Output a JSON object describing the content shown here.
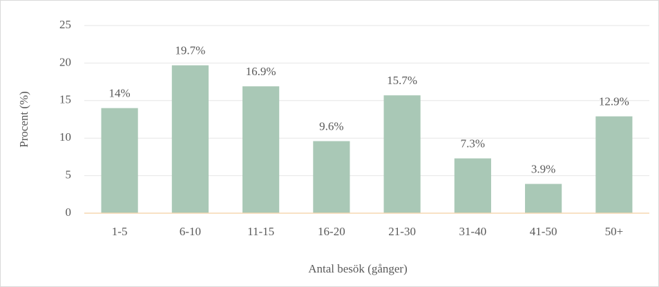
{
  "chart_data": {
    "type": "bar",
    "categories": [
      "1-5",
      "6-10",
      "11-15",
      "16-20",
      "21-30",
      "31-40",
      "41-50",
      "50+"
    ],
    "values": [
      14,
      19.7,
      16.9,
      9.6,
      15.7,
      7.3,
      3.9,
      12.9
    ],
    "value_labels": [
      "14%",
      "19.7%",
      "16.9%",
      "9.6%",
      "15.7%",
      "7.3%",
      "3.9%",
      "12.9%"
    ],
    "color": "#a9c8b6",
    "ylim": [
      0,
      25
    ],
    "yticks": [
      0,
      5,
      10,
      15,
      20,
      25
    ],
    "grid": true,
    "xlabel": "Antal besök (gånger)",
    "ylabel": "Procent (%)"
  }
}
